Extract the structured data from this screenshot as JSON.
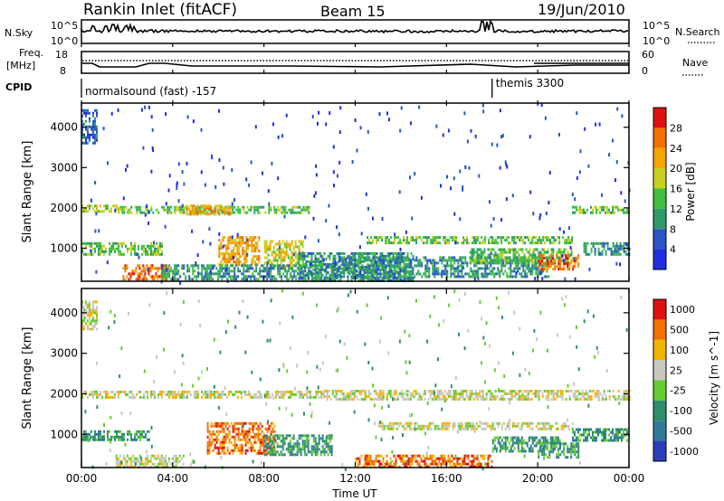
{
  "header": {
    "station": "Rankin Inlet (fitACF)",
    "beam": "Beam 15",
    "date": "19/Jun/2010"
  },
  "noise_panel": {
    "left_label": "N.Sky",
    "left_ticks": [
      "10^5",
      "10^0"
    ],
    "right_label": "N.Search",
    "right_ticks": [
      "10^5",
      "10^0"
    ],
    "right_legend_line": "dotted"
  },
  "freq_panel": {
    "left_label_1": "Freq.",
    "left_label_2": "[MHz]",
    "left_ticks": [
      "18",
      "8"
    ],
    "right_label": "Nave",
    "right_ticks": [
      "60",
      "0"
    ],
    "right_legend_line": "dotted"
  },
  "cpid_panel": {
    "label": "CPID",
    "modes": [
      {
        "text": "normalsound (fast) -157",
        "start_hour": 0
      },
      {
        "text": "themis 3300",
        "start_hour": 18.0
      }
    ]
  },
  "time_axis": {
    "label": "Time UT",
    "ticks": [
      "00:00",
      "04:00",
      "08:00",
      "12:00",
      "16:00",
      "20:00",
      "00:00"
    ]
  },
  "chart_data": [
    {
      "type": "heatmap",
      "title": "",
      "xlabel": "Time UT",
      "ylabel": "Slant Range [km]",
      "xlim": [
        0,
        24
      ],
      "ylim": [
        180,
        4600
      ],
      "yticks": [
        "1000",
        "2000",
        "3000",
        "4000"
      ],
      "colorbar": {
        "label": "Power [dB]",
        "ticks": [
          "4",
          "8",
          "12",
          "16",
          "20",
          "24",
          "28"
        ],
        "colors": [
          "#1f2fe0",
          "#2a55c8",
          "#2f9a6a",
          "#3fbf3f",
          "#c8d020",
          "#f5a400",
          "#f07000",
          "#e01010"
        ]
      },
      "echo_regions": [
        {
          "t": [
            0.0,
            0.7
          ],
          "r": [
            3600,
            4450
          ],
          "level": 1
        },
        {
          "t": [
            0.0,
            1.6
          ],
          "r": [
            1920,
            2080
          ],
          "level": 4
        },
        {
          "t": [
            1.6,
            10.0
          ],
          "r": [
            1900,
            2050
          ],
          "level": 3
        },
        {
          "t": [
            4.5,
            6.5
          ],
          "r": [
            1850,
            2080
          ],
          "level": 5
        },
        {
          "t": [
            0.0,
            3.5
          ],
          "r": [
            850,
            1150
          ],
          "level": 3
        },
        {
          "t": [
            1.8,
            3.8
          ],
          "r": [
            250,
            600
          ],
          "level": 6
        },
        {
          "t": [
            6.0,
            7.8
          ],
          "r": [
            600,
            1300
          ],
          "level": 5
        },
        {
          "t": [
            8.0,
            9.7
          ],
          "r": [
            500,
            1200
          ],
          "level": 4
        },
        {
          "t": [
            3.5,
            10.5
          ],
          "r": [
            250,
            600
          ],
          "level": 2
        },
        {
          "t": [
            9.5,
            14.5
          ],
          "r": [
            200,
            900
          ],
          "level": 2
        },
        {
          "t": [
            12.5,
            21.5
          ],
          "r": [
            1150,
            1300
          ],
          "level": 3
        },
        {
          "t": [
            11.0,
            20.5
          ],
          "r": [
            300,
            800
          ],
          "level": 2
        },
        {
          "t": [
            17.0,
            21.5
          ],
          "r": [
            650,
            1000
          ],
          "level": 3
        },
        {
          "t": [
            20.0,
            21.8
          ],
          "r": [
            450,
            850
          ],
          "level": 6
        },
        {
          "t": [
            21.5,
            24.0
          ],
          "r": [
            1880,
            2050
          ],
          "level": 3
        },
        {
          "t": [
            22.0,
            24.0
          ],
          "r": [
            850,
            1150
          ],
          "level": 2
        }
      ]
    },
    {
      "type": "heatmap",
      "title": "",
      "xlabel": "Time UT",
      "ylabel": "Slant Range [km]",
      "xlim": [
        0,
        24
      ],
      "ylim": [
        180,
        4600
      ],
      "yticks": [
        "1000",
        "2000",
        "3000",
        "4000"
      ],
      "colorbar": {
        "label": "Velocity [m s^-1]",
        "ticks": [
          "1000",
          "500",
          "100",
          "25",
          "-25",
          "-100",
          "-500",
          "-1000"
        ],
        "colors": [
          "#2a3fb8",
          "#2f7a9a",
          "#2e8f6a",
          "#66cc33",
          "#c8c8c0",
          "#f5b400",
          "#f07000",
          "#e01010"
        ]
      },
      "echo_regions": [
        {
          "t": [
            0.0,
            0.7
          ],
          "r": [
            3600,
            4300
          ],
          "level": 4
        },
        {
          "t": [
            0.0,
            10.5
          ],
          "r": [
            1900,
            2080
          ],
          "level": 4
        },
        {
          "t": [
            10.5,
            24.0
          ],
          "r": [
            1850,
            2100
          ],
          "level": 4
        },
        {
          "t": [
            0.0,
            3.0
          ],
          "r": [
            850,
            1100
          ],
          "level": 2
        },
        {
          "t": [
            1.5,
            4.5
          ],
          "r": [
            200,
            500
          ],
          "level": 4
        },
        {
          "t": [
            5.5,
            8.5
          ],
          "r": [
            500,
            1300
          ],
          "level": 6
        },
        {
          "t": [
            8.0,
            11.0
          ],
          "r": [
            500,
            1000
          ],
          "level": 2
        },
        {
          "t": [
            12.0,
            18.0
          ],
          "r": [
            200,
            500
          ],
          "level": 6
        },
        {
          "t": [
            13.0,
            21.5
          ],
          "r": [
            1150,
            1300
          ],
          "level": 4
        },
        {
          "t": [
            18.0,
            21.0
          ],
          "r": [
            600,
            950
          ],
          "level": 2
        },
        {
          "t": [
            20.0,
            21.8
          ],
          "r": [
            400,
            800
          ],
          "level": 2
        },
        {
          "t": [
            21.5,
            24.0
          ],
          "r": [
            850,
            1150
          ],
          "level": 2
        }
      ]
    }
  ]
}
